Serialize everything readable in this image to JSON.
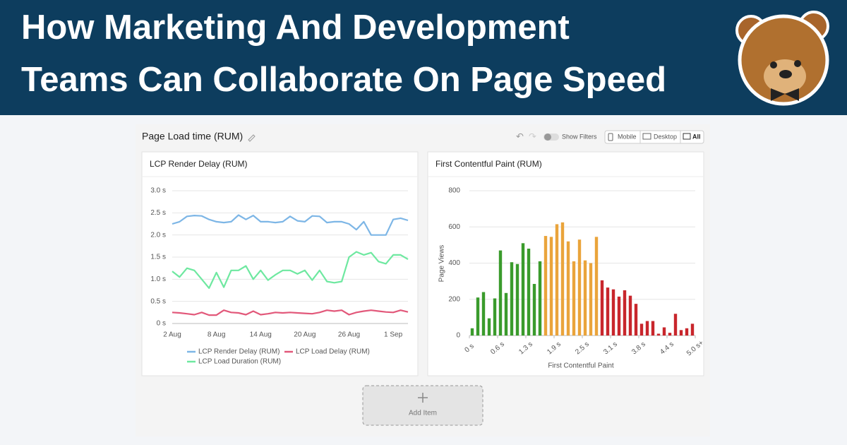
{
  "header": {
    "title_lines": [
      "How Marketing And Development",
      "Teams Can Collaborate On Page Speed"
    ]
  },
  "dashboard": {
    "title": "Page Load time (RUM)",
    "filters_label": "Show Filters",
    "devices": [
      "Mobile",
      "Desktop",
      "All"
    ],
    "add_item": "Add Item"
  },
  "chart_data": [
    {
      "type": "line",
      "title": "LCP Render Delay (RUM)",
      "categories": [
        "2 Aug",
        null,
        null,
        null,
        null,
        null,
        "8 Aug",
        null,
        null,
        null,
        null,
        null,
        "14 Aug",
        null,
        null,
        null,
        null,
        null,
        "20 Aug",
        null,
        null,
        null,
        null,
        null,
        "26 Aug",
        null,
        null,
        null,
        null,
        null,
        "1 Sep",
        null,
        null
      ],
      "series": [
        {
          "name": "LCP Render Delay (RUM)",
          "color": "#7db6e6",
          "values": [
            2.25,
            2.3,
            2.42,
            2.44,
            2.43,
            2.35,
            2.3,
            2.28,
            2.3,
            2.45,
            2.35,
            2.44,
            2.3,
            2.3,
            2.28,
            2.3,
            2.42,
            2.32,
            2.3,
            2.43,
            2.42,
            2.28,
            2.3,
            2.3,
            2.25,
            2.12,
            2.3,
            2.0,
            2.0,
            2.0,
            2.35,
            2.38,
            2.33
          ]
        },
        {
          "name": "LCP Load Delay (RUM)",
          "color": "#e2587a",
          "values": [
            0.25,
            0.24,
            0.22,
            0.2,
            0.25,
            0.19,
            0.19,
            0.3,
            0.25,
            0.24,
            0.2,
            0.28,
            0.2,
            0.22,
            0.25,
            0.24,
            0.25,
            0.24,
            0.23,
            0.22,
            0.25,
            0.3,
            0.28,
            0.3,
            0.2,
            0.25,
            0.28,
            0.3,
            0.28,
            0.26,
            0.25,
            0.3,
            0.26
          ]
        },
        {
          "name": "LCP Load Duration (RUM)",
          "color": "#6ee8a0",
          "values": [
            1.18,
            1.05,
            1.25,
            1.2,
            1.0,
            0.8,
            1.15,
            0.82,
            1.2,
            1.2,
            1.3,
            1.0,
            1.2,
            0.98,
            1.1,
            1.2,
            1.2,
            1.12,
            1.2,
            0.98,
            1.2,
            0.95,
            0.92,
            0.95,
            1.5,
            1.62,
            1.55,
            1.6,
            1.4,
            1.35,
            1.55,
            1.55,
            1.45
          ]
        }
      ],
      "ylim": [
        0,
        3
      ],
      "yticks": [
        {
          "value": 0,
          "label": "0 s"
        },
        {
          "value": 0.5,
          "label": "0.5 s"
        },
        {
          "value": 1,
          "label": "1.0 s"
        },
        {
          "value": 1.5,
          "label": "1.5 s"
        },
        {
          "value": 2,
          "label": "2.0 s"
        },
        {
          "value": 2.5,
          "label": "2.5 s"
        },
        {
          "value": 3,
          "label": "3.0 s"
        }
      ],
      "grid": true
    },
    {
      "type": "histogram",
      "title": "First Contentful Paint (RUM)",
      "xlabel": "First Contentful Paint",
      "ylabel": "Page Views",
      "bins": [
        0,
        0.125,
        0.25,
        0.375,
        0.5,
        0.625,
        0.75,
        0.875,
        1,
        1.125,
        1.25,
        1.375,
        1.5,
        1.625,
        1.75,
        1.875,
        2,
        2.125,
        2.25,
        2.375,
        2.5,
        2.625,
        2.75,
        2.875,
        3,
        3.125,
        3.25,
        3.375,
        3.5,
        3.625,
        3.75,
        3.875,
        4,
        4.125,
        4.25,
        4.375,
        4.5,
        4.625,
        4.75,
        4.875,
        5
      ],
      "counts": [
        40,
        210,
        240,
        95,
        205,
        470,
        235,
        405,
        395,
        510,
        480,
        285,
        410,
        550,
        545,
        615,
        625,
        520,
        410,
        530,
        415,
        400,
        545,
        305,
        265,
        255,
        215,
        250,
        220,
        175,
        65,
        80,
        80,
        10,
        45,
        15,
        120,
        30,
        40,
        65
      ],
      "colors": [
        "#3a9b2c",
        "#3a9b2c",
        "#3a9b2c",
        "#3a9b2c",
        "#3a9b2c",
        "#3a9b2c",
        "#3a9b2c",
        "#3a9b2c",
        "#3a9b2c",
        "#3a9b2c",
        "#3a9b2c",
        "#3a9b2c",
        "#3a9b2c",
        "#eaa43b",
        "#eaa43b",
        "#eaa43b",
        "#eaa43b",
        "#eaa43b",
        "#eaa43b",
        "#eaa43b",
        "#eaa43b",
        "#eaa43b",
        "#eaa43b",
        "#c8262c",
        "#c8262c",
        "#c8262c",
        "#c8262c",
        "#c8262c",
        "#c8262c",
        "#c8262c",
        "#c8262c",
        "#c8262c",
        "#c8262c",
        "#c8262c",
        "#c8262c",
        "#c8262c",
        "#c8262c",
        "#c8262c",
        "#c8262c",
        "#c8262c"
      ],
      "xlim": [
        0,
        5
      ],
      "xticks": [
        {
          "value": 0,
          "label": "0 s"
        },
        {
          "value": 0.625,
          "label": "0.6 s"
        },
        {
          "value": 1.25,
          "label": "1.3 s"
        },
        {
          "value": 1.875,
          "label": "1.9 s"
        },
        {
          "value": 2.5,
          "label": "2.5 s"
        },
        {
          "value": 3.125,
          "label": "3.1 s"
        },
        {
          "value": 3.75,
          "label": "3.8 s"
        },
        {
          "value": 4.375,
          "label": "4.4 s"
        },
        {
          "value": 5,
          "label": "5.0 s+"
        }
      ],
      "ylim": [
        0,
        800
      ],
      "yticks": [
        0,
        200,
        400,
        600,
        800
      ],
      "grid": true
    }
  ]
}
